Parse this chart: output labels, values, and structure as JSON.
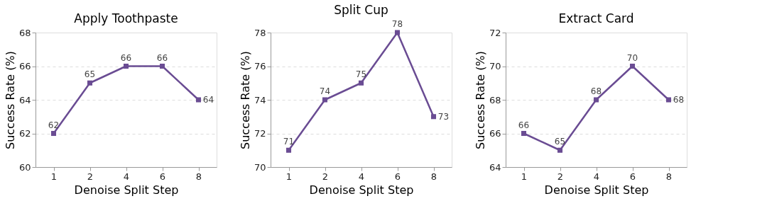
{
  "chart_data": [
    {
      "type": "line",
      "title": "Apply Toothpaste",
      "xlabel": "Denoise Split Step",
      "ylabel": "Success Rate (%)",
      "categories": [
        "1",
        "2",
        "4",
        "6",
        "8"
      ],
      "series": [
        {
          "color": "#6a4c93",
          "values": [
            62,
            65,
            66,
            66,
            64
          ]
        }
      ],
      "ylim": [
        60,
        68
      ],
      "yticks": [
        60,
        62,
        64,
        66,
        68
      ],
      "grid": "y",
      "marker": "square",
      "line_style": "solid",
      "data_labels": true
    },
    {
      "type": "line",
      "title": "Split Cup",
      "xlabel": "Denoise Split Step",
      "ylabel": "Success Rate (%)",
      "categories": [
        "1",
        "2",
        "4",
        "6",
        "8"
      ],
      "series": [
        {
          "color": "#6a4c93",
          "values": [
            71,
            74,
            75,
            78,
            73
          ]
        }
      ],
      "ylim": [
        70,
        78
      ],
      "yticks": [
        70,
        72,
        74,
        76,
        78
      ],
      "grid": "y",
      "marker": "square",
      "line_style": "solid",
      "data_labels": true
    },
    {
      "type": "line",
      "title": "Extract Card",
      "xlabel": "Denoise Split Step",
      "ylabel": "Success Rate (%)",
      "categories": [
        "1",
        "2",
        "4",
        "6",
        "8"
      ],
      "series": [
        {
          "color": "#6a4c93",
          "values": [
            66,
            65,
            68,
            70,
            68
          ]
        }
      ],
      "ylim": [
        64,
        72
      ],
      "yticks": [
        64,
        66,
        68,
        70,
        72
      ],
      "grid": "y",
      "marker": "square",
      "line_style": "solid",
      "data_labels": true
    }
  ]
}
